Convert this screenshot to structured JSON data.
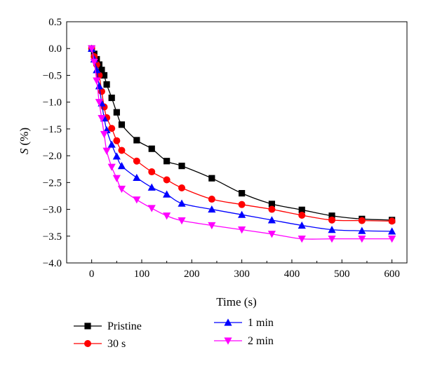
{
  "chart_data": {
    "type": "line",
    "xlabel": "Time (s)",
    "ylabel": "S (%)",
    "xlim": [
      -50,
      630
    ],
    "ylim": [
      -4.0,
      0.5
    ],
    "xticks": [
      0,
      100,
      200,
      300,
      400,
      500,
      600
    ],
    "yticks": [
      0.5,
      0.0,
      -0.5,
      -1.0,
      -1.5,
      -2.0,
      -2.5,
      -3.0,
      -3.5,
      -4.0
    ],
    "xtick_labels": [
      "0",
      "100",
      "200",
      "300",
      "400",
      "500",
      "600"
    ],
    "ytick_labels": [
      "0.5",
      "0.0",
      "−0.5",
      "−1.0",
      "−1.5",
      "−2.0",
      "−2.5",
      "−3.0",
      "−3.5",
      "−4.0"
    ],
    "grid": false,
    "legend_position": "below",
    "series": [
      {
        "name": "Pristine",
        "color": "#000000",
        "marker": "square",
        "x": [
          0,
          5,
          10,
          15,
          20,
          25,
          30,
          40,
          50,
          60,
          90,
          120,
          150,
          180,
          240,
          300,
          360,
          420,
          480,
          540,
          600
        ],
        "y": [
          0.0,
          -0.1,
          -0.2,
          -0.3,
          -0.4,
          -0.5,
          -0.67,
          -0.92,
          -1.19,
          -1.42,
          -1.71,
          -1.87,
          -2.1,
          -2.19,
          -2.42,
          -2.7,
          -2.9,
          -3.01,
          -3.12,
          -3.18,
          -3.2
        ]
      },
      {
        "name": "30 s",
        "color": "#ff0000",
        "marker": "circle",
        "x": [
          0,
          5,
          10,
          15,
          20,
          25,
          30,
          40,
          50,
          60,
          90,
          120,
          150,
          180,
          240,
          300,
          360,
          420,
          480,
          540,
          600
        ],
        "y": [
          0.0,
          -0.15,
          -0.3,
          -0.5,
          -0.8,
          -1.09,
          -1.29,
          -1.49,
          -1.72,
          -1.9,
          -2.1,
          -2.3,
          -2.45,
          -2.6,
          -2.81,
          -2.91,
          -3.0,
          -3.11,
          -3.2,
          -3.21,
          -3.22
        ]
      },
      {
        "name": "1 min",
        "color": "#0000ff",
        "marker": "triangle-up",
        "x": [
          0,
          5,
          10,
          15,
          20,
          25,
          30,
          40,
          50,
          60,
          90,
          120,
          150,
          180,
          240,
          300,
          360,
          420,
          480,
          540,
          600
        ],
        "y": [
          0.0,
          -0.2,
          -0.4,
          -0.7,
          -1.02,
          -1.3,
          -1.52,
          -1.79,
          -2.01,
          -2.19,
          -2.41,
          -2.59,
          -2.72,
          -2.89,
          -3.0,
          -3.1,
          -3.2,
          -3.3,
          -3.38,
          -3.4,
          -3.41
        ]
      },
      {
        "name": "2 min",
        "color": "#ff00ff",
        "marker": "triangle-down",
        "x": [
          0,
          5,
          10,
          15,
          20,
          25,
          30,
          40,
          50,
          60,
          90,
          120,
          150,
          180,
          240,
          300,
          360,
          420,
          480,
          540,
          600
        ],
        "y": [
          0.0,
          -0.25,
          -0.6,
          -1.0,
          -1.3,
          -1.6,
          -1.91,
          -2.21,
          -2.42,
          -2.62,
          -2.82,
          -2.98,
          -3.12,
          -3.21,
          -3.3,
          -3.38,
          -3.46,
          -3.55,
          -3.55,
          -3.55,
          -3.55
        ]
      }
    ]
  }
}
